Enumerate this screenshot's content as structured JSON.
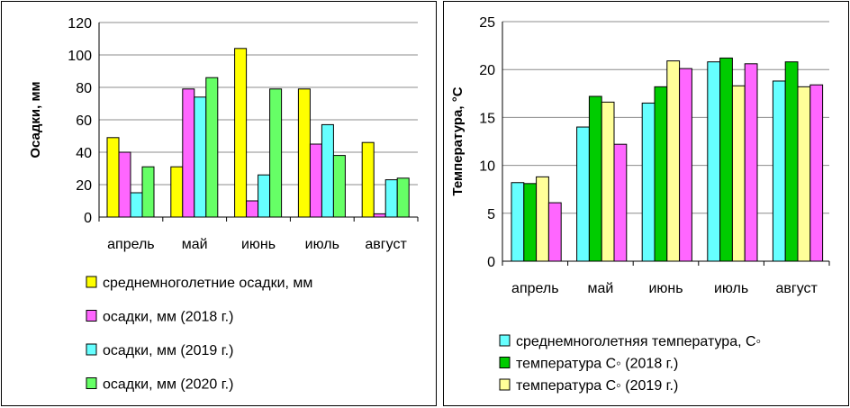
{
  "charts": [
    {
      "type": "bar",
      "categories": [
        "апрель",
        "май",
        "июнь",
        "июль",
        "август"
      ],
      "ylabel": "Осадки, мм",
      "xlabel": "",
      "ylim": [
        0,
        120
      ],
      "yticks": [
        0,
        20,
        40,
        60,
        80,
        100,
        120
      ],
      "grid": true,
      "legend_position": "bottom",
      "series": [
        {
          "name": "среднемноголетние осадки, мм",
          "color": "#ffff00",
          "values": [
            49,
            31,
            104,
            79,
            46
          ]
        },
        {
          "name": "осадки, мм (2018 г.)",
          "color": "#ff66ff",
          "values": [
            40,
            79,
            10,
            45,
            2
          ]
        },
        {
          "name": "осадки, мм (2019 г.)",
          "color": "#66ffff",
          "values": [
            15,
            74,
            26,
            57,
            23
          ]
        },
        {
          "name": "осадки, мм (2020 г.)",
          "color": "#66ff66",
          "values": [
            31,
            86,
            79,
            38,
            24
          ]
        }
      ]
    },
    {
      "type": "bar",
      "categories": [
        "апрель",
        "май",
        "июнь",
        "июль",
        "август"
      ],
      "ylabel": "Температура, °С",
      "xlabel": "",
      "ylim": [
        0,
        25
      ],
      "yticks": [
        0,
        5,
        10,
        15,
        20,
        25
      ],
      "grid": true,
      "legend_position": "bottom",
      "series": [
        {
          "name": "среднемноголетняя температура, С◦",
          "color": "#66ffff",
          "values": [
            8.2,
            14.0,
            16.5,
            20.8,
            18.8
          ]
        },
        {
          "name": "температура С◦ (2018 г.)",
          "color": "#00cc00",
          "values": [
            8.1,
            17.2,
            18.2,
            21.2,
            20.8
          ]
        },
        {
          "name": "температура С◦ (2019 г.)",
          "color": "#ffff99",
          "values": [
            8.8,
            16.6,
            20.9,
            18.3,
            18.2
          ]
        },
        {
          "name": "",
          "color": "#ff66ff",
          "values": [
            6.1,
            12.2,
            20.1,
            20.6,
            18.4
          ]
        }
      ]
    }
  ]
}
